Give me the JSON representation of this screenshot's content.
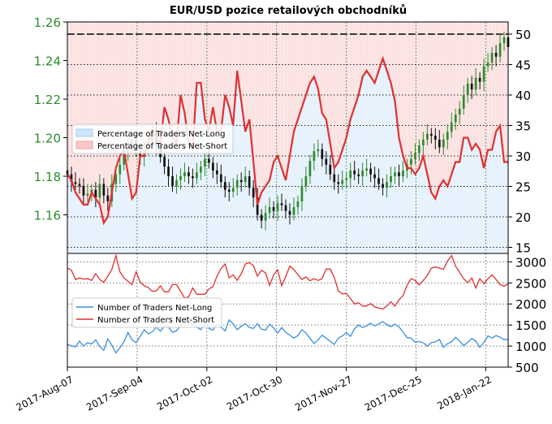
{
  "chart_data": {
    "title": "EUR/USD pozice retailových obchodníků",
    "x_tick_labels": [
      "2017-Aug-07",
      "2017-Sep-04",
      "2017-Oct-02",
      "2017-Oct-30",
      "2017-Nov-27",
      "2017-Dec-25",
      "2018-Jan-22"
    ],
    "x_range": [
      "2017-Aug-07",
      "2018-Jan-31"
    ],
    "colors": {
      "green": "#2e8b2e",
      "black": "#111111",
      "red": "#e03030",
      "blue": "#3a8fe0",
      "net_short_fill": "#f9c9c9",
      "net_long_fill": "#cfe5fb",
      "grid": "#3a8a3a"
    },
    "panels": [
      {
        "type": "candlestick_with_area",
        "left_axis": {
          "range": [
            1.14,
            1.26
          ],
          "ticks": [
            "1.16",
            "1.18",
            "1.20",
            "1.22",
            "1.24",
            "1.26"
          ],
          "color": "#2e8b2e"
        },
        "right_axis": {
          "range": [
            14,
            52
          ],
          "ticks": [
            "15",
            "20",
            "25",
            "30",
            "35",
            "40",
            "45",
            "50"
          ]
        },
        "reference_line": 50,
        "legend": {
          "placement": "center-left",
          "entries": [
            "Percentage of Traders Net-Long",
            "Percentage of Traders Net-Short"
          ]
        },
        "price_close": [
          1.181,
          1.177,
          1.176,
          1.175,
          1.17,
          1.171,
          1.173,
          1.169,
          1.176,
          1.17,
          1.167,
          1.176,
          1.181,
          1.186,
          1.192,
          1.197,
          1.199,
          1.193,
          1.19,
          1.194,
          1.198,
          1.204,
          1.196,
          1.19,
          1.185,
          1.18,
          1.175,
          1.178,
          1.18,
          1.182,
          1.18,
          1.179,
          1.182,
          1.185,
          1.189,
          1.187,
          1.183,
          1.181,
          1.177,
          1.173,
          1.172,
          1.174,
          1.178,
          1.177,
          1.18,
          1.174,
          1.169,
          1.16,
          1.157,
          1.161,
          1.164,
          1.162,
          1.166,
          1.165,
          1.162,
          1.16,
          1.164,
          1.167,
          1.175,
          1.18,
          1.188,
          1.193,
          1.194,
          1.189,
          1.186,
          1.181,
          1.177,
          1.176,
          1.178,
          1.179,
          1.183,
          1.181,
          1.18,
          1.183,
          1.184,
          1.181,
          1.179,
          1.176,
          1.174,
          1.177,
          1.18,
          1.182,
          1.18,
          1.183,
          1.186,
          1.189,
          1.192,
          1.196,
          1.199,
          1.202,
          1.201,
          1.199,
          1.195,
          1.199,
          1.203,
          1.208,
          1.212,
          1.215,
          1.222,
          1.228,
          1.225,
          1.231,
          1.229,
          1.237,
          1.239,
          1.244,
          1.242,
          1.249,
          1.252,
          1.247
        ],
        "net_long_pct": [
          27,
          26,
          24,
          23,
          22,
          22,
          24,
          23,
          22,
          19,
          20,
          24,
          28,
          30,
          31,
          27,
          23,
          24,
          30,
          30,
          32,
          34,
          33,
          32,
          38,
          36,
          33,
          32,
          40,
          37,
          32,
          31,
          42,
          42,
          36,
          34,
          38,
          34,
          34,
          40,
          38,
          35,
          44,
          39,
          34,
          36,
          29,
          22,
          24,
          25,
          26,
          29,
          30,
          28,
          26,
          30,
          34,
          36,
          38,
          40,
          42,
          43,
          41,
          37,
          36,
          32,
          28,
          29,
          31,
          33,
          36,
          38,
          40,
          43,
          44,
          43,
          42,
          44,
          46,
          44,
          42,
          39,
          33,
          30,
          28,
          28,
          27,
          28,
          30,
          27,
          24,
          23,
          25,
          26,
          25,
          27,
          29,
          29,
          33,
          33,
          31,
          32,
          31,
          28,
          31,
          31,
          34,
          35,
          29,
          29
        ]
      },
      {
        "type": "line",
        "right_axis": {
          "range": [
            500,
            3200
          ],
          "ticks": [
            "500",
            "1000",
            "1500",
            "2000",
            "2500",
            "3000"
          ]
        },
        "legend": {
          "placement": "center-left",
          "entries": [
            "Number of Traders Net-Long",
            "Number of Traders Net-Short"
          ]
        },
        "series": [
          {
            "name": "Number of Traders Net-Long",
            "values": [
              1040,
              1010,
              980,
              1120,
              1000,
              1080,
              1050,
              1150,
              990,
              900,
              1170,
              1020,
              840,
              960,
              1100,
              1320,
              1150,
              1080,
              1230,
              1390,
              1290,
              1340,
              1450,
              1350,
              1480,
              1450,
              1330,
              1360,
              1510,
              1600,
              1680,
              1510,
              1450,
              1390,
              1550,
              1420,
              1380,
              1520,
              1450,
              1360,
              1620,
              1530,
              1390,
              1470,
              1530,
              1440,
              1420,
              1530,
              1400,
              1380,
              1520,
              1430,
              1310,
              1440,
              1330,
              1260,
              1190,
              1250,
              1390,
              1310,
              1180,
              1060,
              1150,
              1260,
              1190,
              1110,
              1040,
              1190,
              1240,
              1320,
              1230,
              1410,
              1500,
              1440,
              1480,
              1540,
              1480,
              1530,
              1580,
              1510,
              1460,
              1520,
              1460,
              1330,
              1200,
              1190,
              1090,
              1110,
              1080,
              1000,
              1080,
              1100,
              1160,
              970,
              1060,
              1100,
              1210,
              1120,
              1010,
              1090,
              1180,
              1120,
              970,
              1090,
              1240,
              1190,
              1250,
              1210,
              1150,
              1160
            ]
          },
          {
            "name": "Number of Traders Net-Short",
            "values": [
              2850,
              2800,
              2580,
              2620,
              2590,
              2600,
              2560,
              2720,
              2580,
              2510,
              2660,
              2820,
              3150,
              2760,
              2620,
              2540,
              2460,
              2760,
              2520,
              2430,
              2390,
              2300,
              2310,
              2430,
              2290,
              2290,
              2460,
              2460,
              2300,
              2140,
              2170,
              2380,
              2230,
              2230,
              2230,
              2360,
              2410,
              2660,
              2840,
              2950,
              2620,
              2690,
              2560,
              2720,
              2950,
              2980,
              2910,
              2660,
              2800,
              2740,
              2440,
              2690,
              2810,
              2430,
              2650,
              2900,
              2820,
              2690,
              2580,
              2640,
              2550,
              2600,
              2560,
              2600,
              2830,
              2830,
              2630,
              2310,
              2240,
              2250,
              2130,
              2000,
              2030,
              1950,
              1950,
              2010,
              1930,
              1900,
              1880,
              1950,
              2050,
              1950,
              2100,
              2200,
              2450,
              2600,
              2560,
              2450,
              2560,
              2680,
              2850,
              2880,
              2850,
              2820,
              3020,
              3150,
              2900,
              2750,
              2600,
              2500,
              2620,
              2380,
              2600,
              2480,
              2600,
              2690,
              2580,
              2460,
              2420,
              2480
            ]
          }
        ]
      }
    ]
  }
}
